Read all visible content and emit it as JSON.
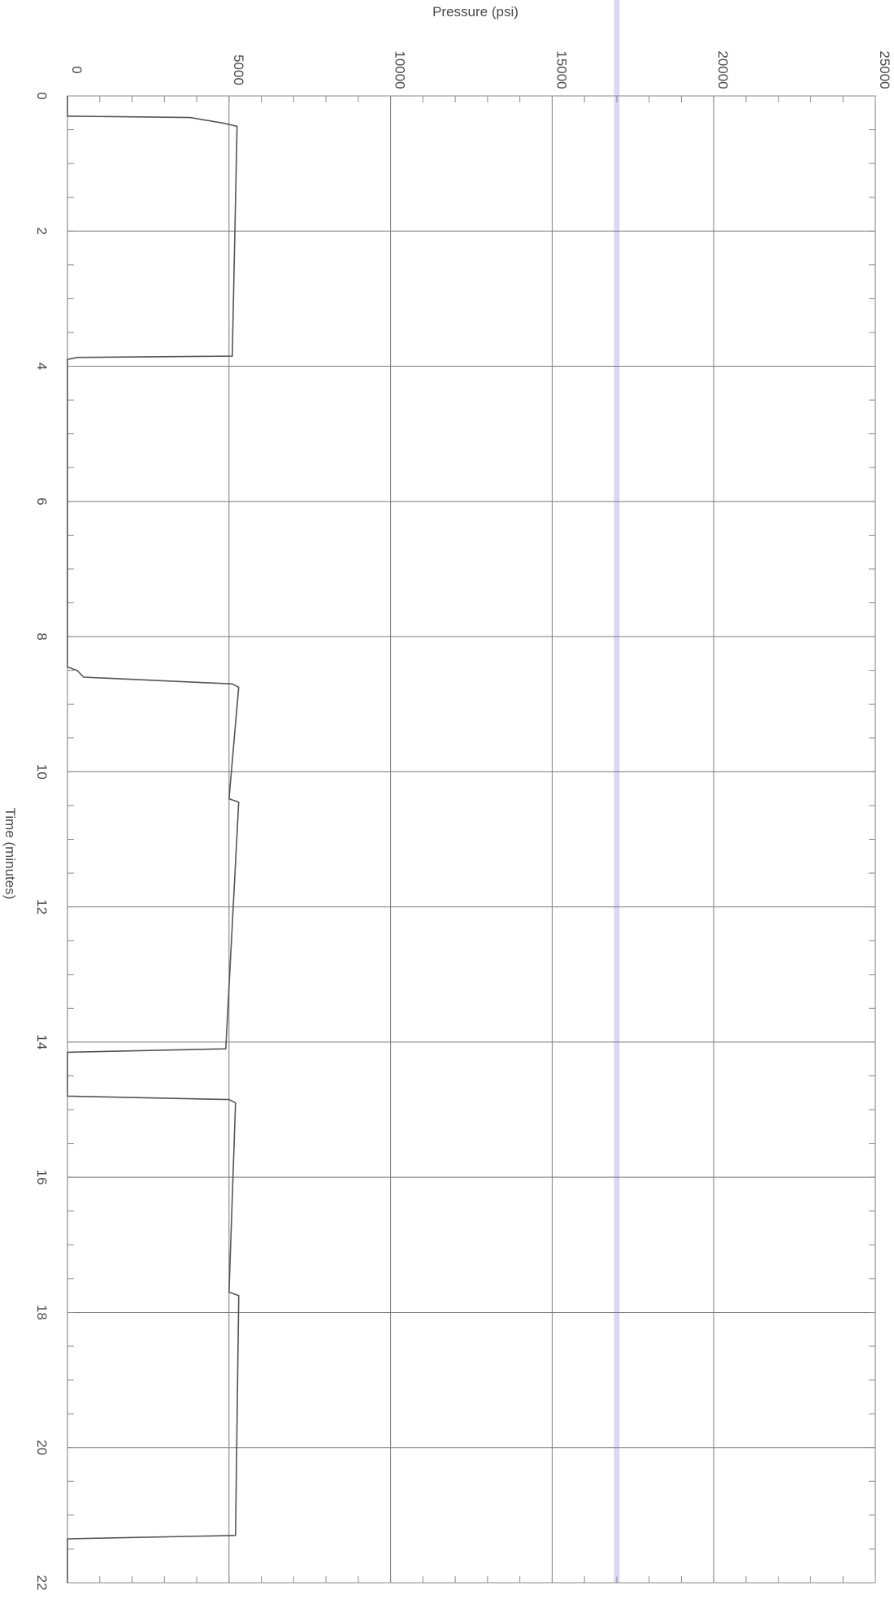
{
  "chart_data": {
    "type": "line",
    "orientation": "rotated-90",
    "xlabel": "Time (minutes)",
    "ylabel": "Pressure (psi)",
    "xlim": [
      0,
      22
    ],
    "ylim": [
      0,
      25000
    ],
    "x_ticks": [
      "0",
      "2",
      "4",
      "6",
      "8",
      "10",
      "12",
      "14",
      "16",
      "18",
      "20",
      "22"
    ],
    "y_ticks": [
      "0",
      "5000",
      "10000",
      "15000",
      "20000",
      "25000"
    ],
    "grid": true,
    "marker_line": {
      "y": 17000,
      "color": "#d9d9f7"
    },
    "series": [
      {
        "color": "#555555",
        "x": [
          0,
          0.3,
          0.3,
          0.32,
          0.4,
          0.45,
          3.85,
          3.87,
          3.9,
          8.45,
          8.5,
          8.6,
          8.7,
          8.75,
          10.4,
          10.45,
          14.1,
          14.15,
          14.8,
          14.85,
          14.9,
          17.7,
          17.75,
          17.8,
          21.3,
          21.35,
          22.0
        ],
        "y": [
          0,
          0,
          100,
          3800,
          4800,
          5250,
          5100,
          300,
          0,
          0,
          300,
          500,
          5100,
          5300,
          5000,
          5300,
          4900,
          0,
          0,
          5000,
          5200,
          5000,
          5300,
          5300,
          5200,
          0,
          0
        ]
      }
    ]
  },
  "colors": {
    "grid_major": "#7a7a7a",
    "frame": "#8a8a8a",
    "data_line": "#555555",
    "marker_line": "#d9d9f7",
    "text": "#4a4a4a"
  }
}
